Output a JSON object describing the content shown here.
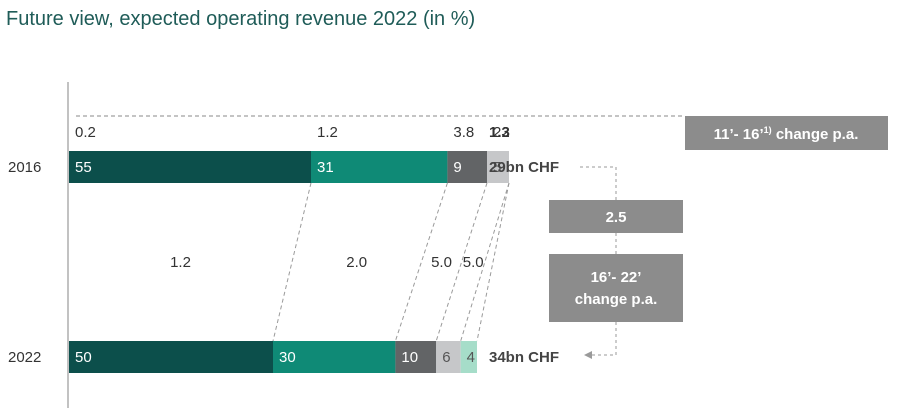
{
  "chart_data": {
    "type": "bar",
    "title": "Future view, expected operating revenue 2022 (in %)",
    "xlabel": "",
    "ylabel": "",
    "categories": [
      "2016",
      "2022"
    ],
    "series": [
      {
        "values": [
          55,
          50
        ]
      },
      {
        "values": [
          31,
          30
        ]
      },
      {
        "values": [
          9,
          10
        ]
      },
      {
        "values": [
          5,
          6
        ]
      },
      {
        "values": [
          0,
          4
        ]
      }
    ],
    "totals": [
      "29bn CHF",
      "34bn CHF"
    ],
    "change_11_16": {
      "values": [
        "0.2",
        "1.2",
        "3.8",
        "22"
      ],
      "total": "1.3",
      "label_main": "11’- 16’",
      "label_sup": "1)",
      "label_tail": " change p.a."
    },
    "change_16_22": {
      "values": [
        "1.2",
        "2.0",
        "5.0",
        "5.0"
      ],
      "total": "2.5",
      "label_line1": "16’- 22’",
      "label_line2": "change p.a."
    },
    "colors": [
      "#0c4f4b",
      "#0f8a76",
      "#626466",
      "#c6c7c9",
      "#a6ddc9"
    ],
    "label_colors": [
      "#ffffff",
      "#ffffff",
      "#ffffff",
      "#555555",
      "#555555"
    ],
    "box_color": "#8c8c8c",
    "title_color": "#1f5c58",
    "grid": false
  }
}
